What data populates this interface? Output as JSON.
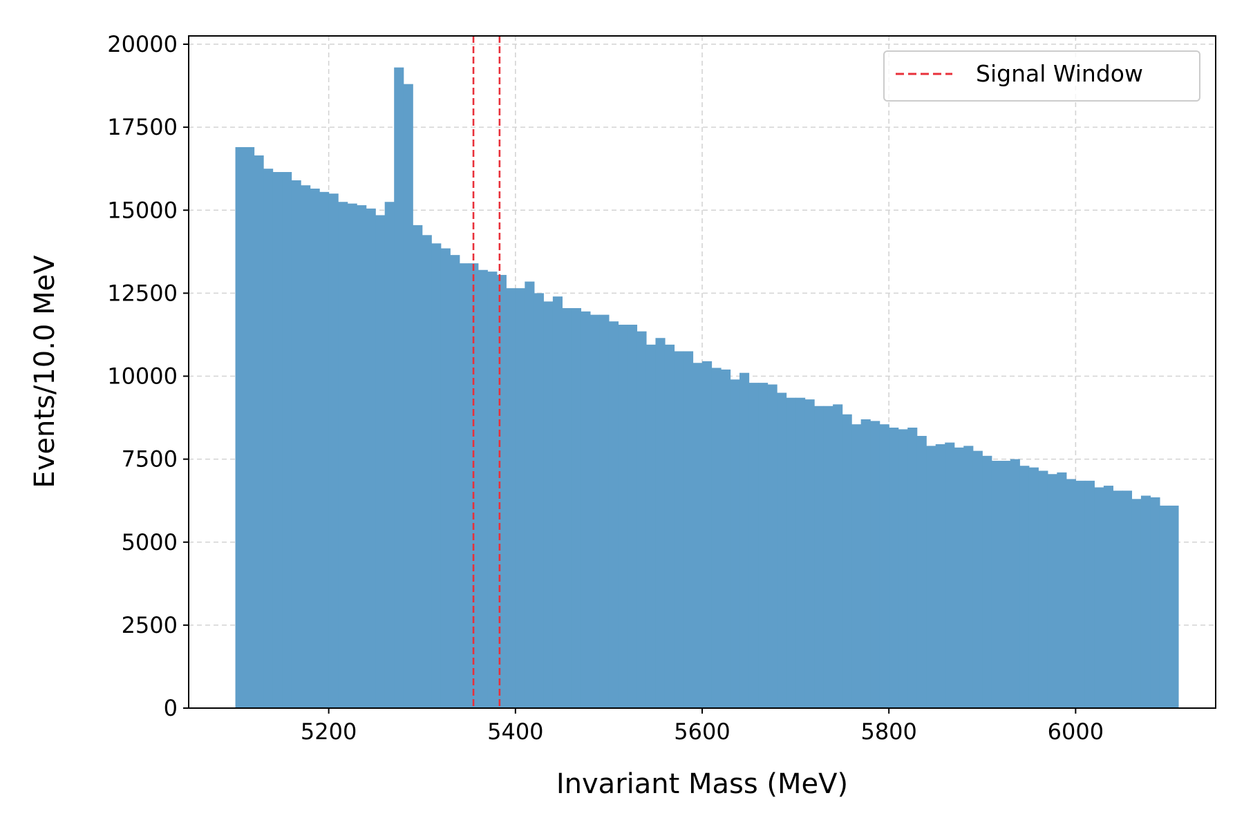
{
  "colors": {
    "bars": "#5f9ec9",
    "signal_window": "#e8303a",
    "grid": "#d3d3d3"
  },
  "chart_data": {
    "type": "bar",
    "title": "",
    "xlabel": "Invariant Mass (MeV)",
    "ylabel": "Events/10.0 MeV",
    "bin_width": 10,
    "bin_start": 5100,
    "xlim": [
      5050,
      6150
    ],
    "ylim": [
      0,
      20250
    ],
    "xticks": [
      5200,
      5400,
      5600,
      5800,
      6000
    ],
    "yticks": [
      0,
      2500,
      5000,
      7500,
      10000,
      12500,
      15000,
      17500,
      20000
    ],
    "grid": true,
    "legend": {
      "position": "top-right",
      "entries": [
        {
          "label": "Signal Window",
          "style": "dashed-line"
        }
      ]
    },
    "signal_window": [
      5355,
      5383
    ],
    "values": [
      16900,
      16900,
      16650,
      16250,
      16150,
      16150,
      15900,
      15750,
      15650,
      15550,
      15500,
      15250,
      15200,
      15150,
      15050,
      14850,
      15250,
      19300,
      18800,
      14550,
      14250,
      14000,
      13850,
      13650,
      13400,
      13400,
      13200,
      13150,
      13050,
      12650,
      12650,
      12850,
      12500,
      12250,
      12400,
      12050,
      12050,
      11950,
      11850,
      11850,
      11650,
      11550,
      11550,
      11350,
      10950,
      11150,
      10950,
      10750,
      10750,
      10400,
      10450,
      10250,
      10200,
      9900,
      10100,
      9800,
      9800,
      9750,
      9500,
      9350,
      9350,
      9300,
      9100,
      9100,
      9150,
      8850,
      8550,
      8700,
      8650,
      8550,
      8450,
      8400,
      8450,
      8200,
      7900,
      7950,
      8000,
      7850,
      7900,
      7750,
      7600,
      7450,
      7450,
      7500,
      7300,
      7250,
      7150,
      7050,
      7100,
      6900,
      6850,
      6850,
      6650,
      6700,
      6550,
      6550,
      6300,
      6400,
      6350,
      6100,
      6100
    ]
  }
}
